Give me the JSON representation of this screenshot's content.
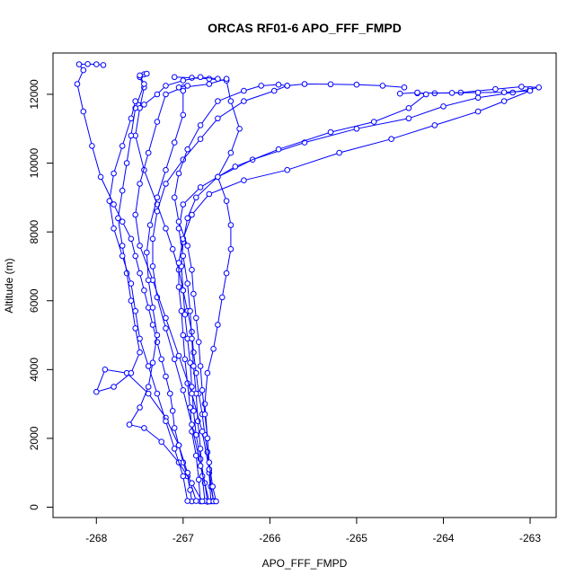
{
  "chart_data": {
    "type": "line",
    "title": "ORCAS RF01-6 APO_FFF_FMPD",
    "xlabel": "APO_FFF_FMPD",
    "ylabel": "Altitude (m)",
    "xlim": [
      -268.5,
      -262.7
    ],
    "ylim": [
      -300,
      13200
    ],
    "x_ticks": [
      -268,
      -267,
      -266,
      -265,
      -264,
      -263
    ],
    "y_ticks": [
      0,
      2000,
      4000,
      6000,
      8000,
      10000,
      12000
    ],
    "grid": false,
    "color": "#0000ff",
    "marker": "open-circle",
    "series": [
      {
        "points": [
          [
            -266.9,
            170
          ],
          [
            -266.92,
            500
          ],
          [
            -266.95,
            900
          ],
          [
            -267.0,
            1300
          ],
          [
            -267.05,
            1800
          ],
          [
            -267.1,
            2300
          ],
          [
            -267.12,
            2800
          ],
          [
            -267.15,
            3300
          ],
          [
            -267.2,
            3800
          ],
          [
            -267.25,
            4300
          ],
          [
            -267.3,
            4800
          ],
          [
            -267.35,
            5300
          ],
          [
            -267.4,
            5800
          ],
          [
            -267.45,
            6300
          ],
          [
            -267.5,
            6800
          ],
          [
            -267.55,
            7300
          ],
          [
            -267.6,
            7800
          ],
          [
            -267.7,
            8300
          ],
          [
            -267.8,
            8800
          ],
          [
            -267.95,
            9600
          ],
          [
            -268.05,
            10500
          ],
          [
            -268.15,
            11500
          ],
          [
            -268.22,
            12300
          ],
          [
            -268.15,
            12700
          ],
          [
            -268.2,
            12870
          ],
          [
            -268.1,
            12880
          ],
          [
            -268.0,
            12870
          ],
          [
            -267.92,
            12850
          ]
        ]
      },
      {
        "points": [
          [
            -266.65,
            180
          ],
          [
            -266.68,
            600
          ],
          [
            -266.7,
            1100
          ],
          [
            -266.72,
            1600
          ],
          [
            -266.75,
            2100
          ],
          [
            -266.78,
            2700
          ],
          [
            -266.82,
            3300
          ],
          [
            -266.85,
            3900
          ],
          [
            -266.88,
            4500
          ],
          [
            -266.9,
            5100
          ],
          [
            -266.95,
            5700
          ],
          [
            -267.0,
            6300
          ],
          [
            -267.05,
            6900
          ],
          [
            -267.12,
            7500
          ],
          [
            -267.2,
            8100
          ],
          [
            -267.3,
            8800
          ],
          [
            -267.45,
            9800
          ],
          [
            -267.55,
            10800
          ],
          [
            -267.5,
            11600
          ],
          [
            -267.45,
            12200
          ],
          [
            -267.5,
            12500
          ],
          [
            -267.45,
            12580
          ]
        ]
      },
      {
        "points": [
          [
            -266.72,
            160
          ],
          [
            -266.75,
            700
          ],
          [
            -266.8,
            1400
          ],
          [
            -266.85,
            2100
          ],
          [
            -266.88,
            2800
          ],
          [
            -266.9,
            3500
          ],
          [
            -266.92,
            4200
          ],
          [
            -266.95,
            4900
          ],
          [
            -266.98,
            5600
          ],
          [
            -267.0,
            6300
          ],
          [
            -267.02,
            7000
          ],
          [
            -267.0,
            7700
          ],
          [
            -266.95,
            8400
          ],
          [
            -266.85,
            9000
          ],
          [
            -266.6,
            9600
          ],
          [
            -266.2,
            10100
          ],
          [
            -265.6,
            10600
          ],
          [
            -265.0,
            11000
          ],
          [
            -264.4,
            11300
          ],
          [
            -264.0,
            11650
          ],
          [
            -263.6,
            11900
          ],
          [
            -263.2,
            12050
          ],
          [
            -263.0,
            12150
          ],
          [
            -262.9,
            12200
          ],
          [
            -263.1,
            12220
          ],
          [
            -263.4,
            12150
          ],
          [
            -263.8,
            12050
          ],
          [
            -264.1,
            12030
          ]
        ]
      },
      {
        "points": [
          [
            -266.8,
            170
          ],
          [
            -266.82,
            800
          ],
          [
            -266.85,
            1500
          ],
          [
            -266.9,
            2200
          ],
          [
            -266.92,
            2900
          ],
          [
            -266.95,
            3600
          ],
          [
            -266.98,
            4300
          ],
          [
            -267.0,
            5000
          ],
          [
            -267.02,
            5700
          ],
          [
            -267.05,
            6400
          ],
          [
            -267.05,
            7100
          ],
          [
            -267.0,
            7800
          ],
          [
            -266.9,
            8500
          ],
          [
            -266.7,
            9100
          ],
          [
            -266.3,
            9500
          ],
          [
            -265.8,
            9800
          ],
          [
            -265.2,
            10300
          ],
          [
            -264.6,
            10700
          ],
          [
            -264.1,
            11100
          ],
          [
            -263.6,
            11500
          ],
          [
            -263.3,
            11800
          ],
          [
            -263.0,
            12100
          ],
          [
            -263.3,
            12060
          ],
          [
            -263.6,
            12050
          ],
          [
            -263.9,
            12040
          ],
          [
            -264.3,
            12030
          ]
        ]
      },
      {
        "points": [
          [
            -266.75,
            180
          ],
          [
            -266.78,
            900
          ],
          [
            -266.8,
            1700
          ],
          [
            -266.83,
            2500
          ],
          [
            -266.85,
            3300
          ],
          [
            -266.88,
            4100
          ],
          [
            -266.9,
            4900
          ],
          [
            -266.92,
            5700
          ],
          [
            -266.95,
            6500
          ],
          [
            -267.0,
            7300
          ],
          [
            -267.05,
            8100
          ],
          [
            -267.0,
            8800
          ],
          [
            -266.8,
            9300
          ],
          [
            -266.4,
            9900
          ],
          [
            -265.9,
            10400
          ],
          [
            -265.3,
            10900
          ],
          [
            -264.8,
            11200
          ],
          [
            -264.4,
            11600
          ],
          [
            -264.2,
            12000
          ],
          [
            -264.3,
            12050
          ],
          [
            -264.5,
            12020
          ]
        ]
      },
      {
        "points": [
          [
            -266.68,
            170
          ],
          [
            -266.7,
            1000
          ],
          [
            -266.72,
            2000
          ],
          [
            -266.75,
            3000
          ],
          [
            -266.72,
            3900
          ],
          [
            -266.65,
            4600
          ],
          [
            -266.6,
            5300
          ],
          [
            -266.55,
            6100
          ],
          [
            -266.5,
            6800
          ],
          [
            -266.45,
            7500
          ],
          [
            -266.45,
            8200
          ],
          [
            -266.5,
            8900
          ],
          [
            -266.6,
            9600
          ],
          [
            -266.45,
            10300
          ],
          [
            -266.35,
            11000
          ],
          [
            -266.45,
            11800
          ],
          [
            -266.5,
            12400
          ],
          [
            -266.7,
            12450
          ],
          [
            -266.9,
            12480
          ],
          [
            -267.1,
            12500
          ]
        ]
      },
      {
        "points": [
          [
            -266.7,
            170
          ],
          [
            -266.8,
            1200
          ],
          [
            -266.9,
            2400
          ],
          [
            -267.0,
            3400
          ],
          [
            -267.1,
            4300
          ],
          [
            -267.2,
            5200
          ],
          [
            -267.3,
            6100
          ],
          [
            -267.35,
            7000
          ],
          [
            -267.35,
            7800
          ],
          [
            -267.3,
            8600
          ],
          [
            -267.2,
            9400
          ],
          [
            -267.0,
            10100
          ],
          [
            -266.8,
            10700
          ],
          [
            -266.6,
            11300
          ],
          [
            -266.3,
            11800
          ],
          [
            -265.95,
            12100
          ],
          [
            -265.8,
            12250
          ],
          [
            -265.6,
            12300
          ],
          [
            -265.3,
            12290
          ],
          [
            -265.0,
            12280
          ],
          [
            -264.7,
            12250
          ],
          [
            -264.45,
            12200
          ]
        ]
      },
      {
        "points": [
          [
            -266.65,
            170
          ],
          [
            -266.7,
            1100
          ],
          [
            -266.78,
            2200
          ],
          [
            -266.9,
            3300
          ],
          [
            -267.05,
            4400
          ],
          [
            -267.2,
            5500
          ],
          [
            -267.35,
            6600
          ],
          [
            -267.5,
            7600
          ],
          [
            -267.55,
            8500
          ],
          [
            -267.5,
            9400
          ],
          [
            -267.4,
            10300
          ],
          [
            -267.3,
            11200
          ],
          [
            -267.2,
            12000
          ],
          [
            -267.0,
            12200
          ],
          [
            -266.7,
            12300
          ],
          [
            -266.5,
            12450
          ]
        ]
      },
      {
        "points": [
          [
            -266.85,
            180
          ],
          [
            -266.95,
            1000
          ],
          [
            -267.05,
            1800
          ],
          [
            -267.2,
            2600
          ],
          [
            -267.4,
            3300
          ],
          [
            -267.65,
            3900
          ],
          [
            -267.9,
            4000
          ],
          [
            -268.0,
            3350
          ],
          [
            -267.8,
            3500
          ],
          [
            -267.6,
            3900
          ],
          [
            -267.5,
            4500
          ],
          [
            -267.55,
            5200
          ],
          [
            -267.6,
            6000
          ],
          [
            -267.65,
            6800
          ],
          [
            -267.7,
            7600
          ],
          [
            -267.75,
            8400
          ],
          [
            -267.7,
            9200
          ],
          [
            -267.65,
            10000
          ],
          [
            -267.6,
            10800
          ],
          [
            -267.55,
            11600
          ],
          [
            -267.45,
            12300
          ],
          [
            -267.5,
            12550
          ],
          [
            -267.42,
            12600
          ]
        ]
      },
      {
        "points": [
          [
            -266.78,
            170
          ],
          [
            -266.9,
            700
          ],
          [
            -267.05,
            1300
          ],
          [
            -267.25,
            1900
          ],
          [
            -267.45,
            2300
          ],
          [
            -267.62,
            2400
          ],
          [
            -267.5,
            2900
          ],
          [
            -267.4,
            3500
          ],
          [
            -267.35,
            4200
          ],
          [
            -267.3,
            5000
          ],
          [
            -267.35,
            5800
          ],
          [
            -267.4,
            6600
          ],
          [
            -267.42,
            7400
          ],
          [
            -267.38,
            8200
          ],
          [
            -267.3,
            9000
          ],
          [
            -267.2,
            9800
          ],
          [
            -267.1,
            10600
          ],
          [
            -267.0,
            11400
          ],
          [
            -267.0,
            12100
          ],
          [
            -267.05,
            12200
          ],
          [
            -266.95,
            12250
          ]
        ]
      },
      {
        "points": [
          [
            -266.95,
            180
          ],
          [
            -267.0,
            900
          ],
          [
            -267.1,
            1700
          ],
          [
            -267.2,
            2500
          ],
          [
            -267.3,
            3300
          ],
          [
            -267.4,
            4100
          ],
          [
            -267.5,
            4900
          ],
          [
            -267.55,
            5700
          ],
          [
            -267.6,
            6500
          ],
          [
            -267.7,
            7300
          ],
          [
            -267.8,
            8100
          ],
          [
            -267.85,
            8900
          ],
          [
            -267.8,
            9700
          ],
          [
            -267.7,
            10500
          ],
          [
            -267.6,
            11300
          ],
          [
            -267.55,
            11800
          ],
          [
            -267.45,
            11700
          ],
          [
            -267.3,
            12000
          ],
          [
            -267.2,
            12250
          ],
          [
            -267.0,
            12400
          ],
          [
            -266.8,
            12500
          ],
          [
            -266.6,
            12450
          ]
        ]
      },
      {
        "points": [
          [
            -266.62,
            170
          ],
          [
            -266.66,
            600
          ],
          [
            -266.7,
            1300
          ],
          [
            -266.72,
            2000
          ],
          [
            -266.75,
            2700
          ],
          [
            -266.78,
            3400
          ],
          [
            -266.8,
            4100
          ],
          [
            -266.82,
            4800
          ],
          [
            -266.85,
            5500
          ],
          [
            -266.88,
            6200
          ],
          [
            -266.9,
            6900
          ],
          [
            -266.95,
            7600
          ],
          [
            -267.05,
            8300
          ],
          [
            -267.1,
            9000
          ],
          [
            -267.05,
            9700
          ],
          [
            -266.95,
            10400
          ],
          [
            -266.8,
            11100
          ],
          [
            -266.6,
            11800
          ],
          [
            -266.3,
            12100
          ],
          [
            -266.1,
            12250
          ],
          [
            -265.9,
            12280
          ],
          [
            -265.8,
            12250
          ]
        ]
      }
    ]
  }
}
